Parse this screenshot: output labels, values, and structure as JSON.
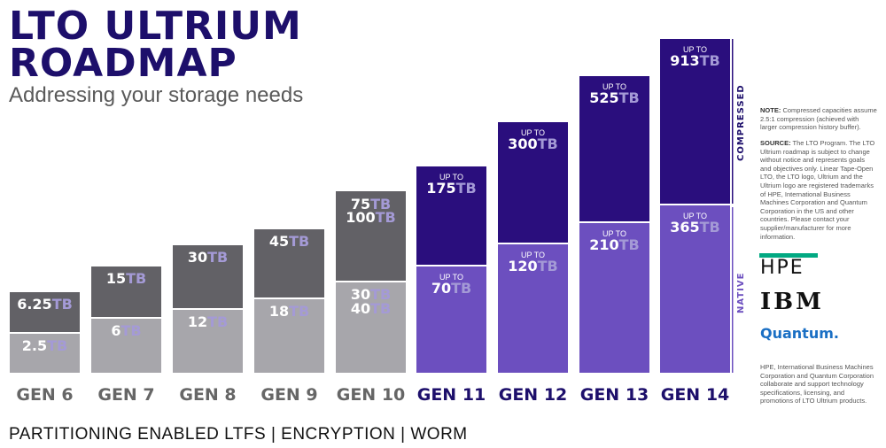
{
  "header": {
    "title_line1": "LTO ULTRIUM",
    "title_line2": "ROADMAP",
    "subtitle": "Addressing your storage needs"
  },
  "chart_data": {
    "type": "bar",
    "stacked": true,
    "categories": [
      "GEN 6",
      "GEN 7",
      "GEN 8",
      "GEN 9",
      "GEN 10",
      "GEN 11",
      "GEN 12",
      "GEN 13",
      "GEN 14"
    ],
    "series": [
      {
        "name": "NATIVE",
        "values": [
          2.5,
          6,
          12,
          18,
          40,
          70,
          120,
          210,
          365
        ]
      },
      {
        "name": "COMPRESSED",
        "values": [
          6.25,
          15,
          30,
          45,
          100,
          175,
          300,
          525,
          913
        ]
      }
    ],
    "native_labels": [
      "2.5TB",
      "6TB",
      "12TB",
      "18TB",
      "30TB|40TB",
      "70TB",
      "120TB",
      "210TB",
      "365TB"
    ],
    "compressed_labels": [
      "6.25TB",
      "15TB",
      "30TB",
      "45TB",
      "75TB|100TB",
      "175TB",
      "300TB",
      "525TB",
      "913TB"
    ],
    "upto_label": "UP TO",
    "unit": "TB",
    "colors": {
      "past_native": "#a7a6ab",
      "past_compressed": "#626166",
      "future_native": "#6c4fbf",
      "future_compressed": "#2a0e7d",
      "past_gen_text": "#666666",
      "future_gen_text": "#1d0f6b",
      "tb_suffix": "#a49ad6"
    }
  },
  "side_labels": {
    "compressed": "COMPRESSED",
    "native": "NATIVE"
  },
  "notes": {
    "note_label": "NOTE:",
    "note_text": "Compressed capacities assume 2.5:1 compression (achieved with larger compression history buffer).",
    "source_label": "SOURCE:",
    "source_text": "The LTO Program. The LTO Ultrium roadmap is subject to change without notice and represents goals and objectives only. Linear Tape-Open LTO, the LTO logo, Ultrium and the Ultrium logo are registered trademarks of HPE, International Business Machines Corporation and Quantum Corporation in the US and other countries. Please contact your supplier/manufacturer for more information.",
    "bottom_text": "HPE, International Business Machines Corporation and Quantum Corporation collaborate and support technology specifications, licensing, and promotions of LTO Ultrium products."
  },
  "logos": {
    "hpe": "HPE",
    "ibm": "IBM",
    "quantum": "Quantum."
  },
  "footer": "PARTITIONING ENABLED LTFS | ENCRYPTION | WORM"
}
